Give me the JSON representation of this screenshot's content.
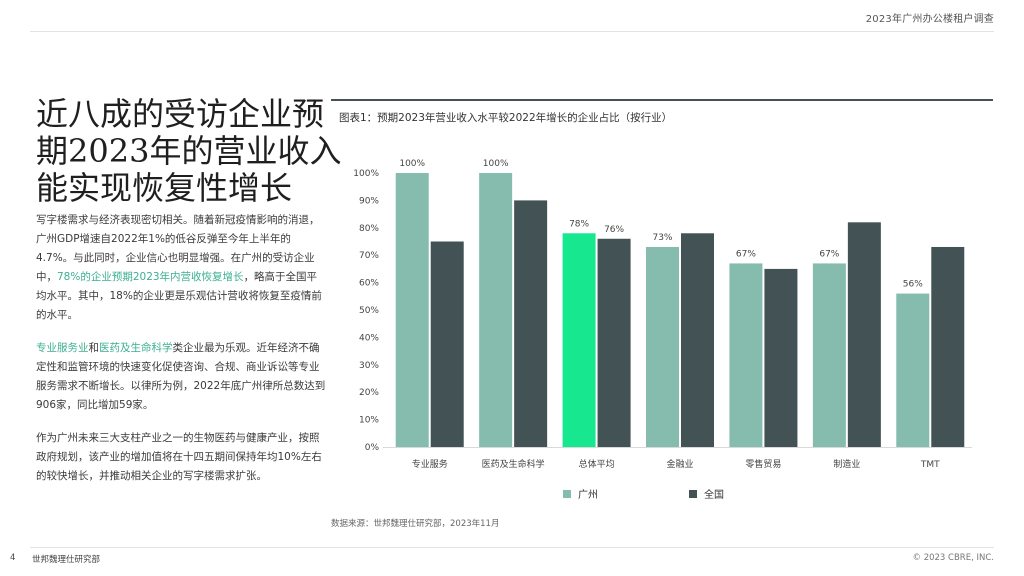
{
  "header": {
    "title": "2023年广州办公楼租户调查"
  },
  "headline": {
    "lines": [
      "近八成的受访企业预",
      "期2023年的营业收入",
      "能实现恢复性增长"
    ]
  },
  "paragraphs": {
    "p1_a": "写字楼需求与经济表现密切相关。随着新冠疫情影响的消退，广州GDP增速自2022年1%的低谷反弹至今年上半年的4.7%。与此同时，企业信心也明显增强。在广州的受访企业中，",
    "p1_hl": "78%的企业预期2023年内营收恢复增长",
    "p1_b": "，略高于全国平均水平。其中，18%的企业更是乐观估计营收将恢复至疫情前的水平。",
    "p2_hl1": "专业服务业",
    "p2_and": "和",
    "p2_hl2": "医药及生命科学",
    "p2_b": "类企业最为乐观。近年经济不确定性和监管环境的快速变化促使咨询、合规、商业诉讼等专业服务需求不断增长。以律所为例，2022年底广州律所总数达到906家，同比增加59家。",
    "p3": "作为广州未来三大支柱产业之一的生物医药与健康产业，按照政府规划，该产业的增加值将在十四五期间保持年均10%左右的较快增长，并推动相关企业的写字楼需求扩张。"
  },
  "colors": {
    "guangzhou": "#85bcad",
    "guangzhou_highlight": "#17e88f",
    "national": "#435254",
    "accent_text": "#3bb08f"
  },
  "chart_data": {
    "type": "bar",
    "title": "图表1：预期2023年营业收入水平较2022年增长的企业占比（按行业）",
    "categories": [
      "专业服务",
      "医药及生命科学",
      "总体平均",
      "金融业",
      "零售贸易",
      "制造业",
      "TMT"
    ],
    "series": [
      {
        "name": "广州",
        "values": [
          100,
          100,
          78,
          73,
          67,
          67,
          56
        ]
      },
      {
        "name": "全国",
        "values": [
          75,
          90,
          76,
          78,
          65,
          82,
          73
        ]
      }
    ],
    "data_labels": {
      "series": "广州",
      "values": [
        "100%",
        "100%",
        "78%",
        "",
        "67%",
        "67%",
        "56%"
      ]
    },
    "extra_labels": [
      {
        "category_index": 2,
        "series": "全国",
        "text": "76%"
      },
      {
        "category_index": 3,
        "series": "广州",
        "text": "73%"
      }
    ],
    "highlight_category_index": 2,
    "ylim": [
      0,
      100
    ],
    "yticks": [
      0,
      10,
      20,
      30,
      40,
      50,
      60,
      70,
      80,
      90,
      100
    ],
    "ytick_format": "{v}%",
    "grid": false,
    "legend": "bottom"
  },
  "source": "数据来源：世邦魏理仕研究部，2023年11月",
  "footer": {
    "page_number": "4",
    "left": "世邦魏理仕研究部",
    "right": "© 2023 CBRE, INC."
  }
}
